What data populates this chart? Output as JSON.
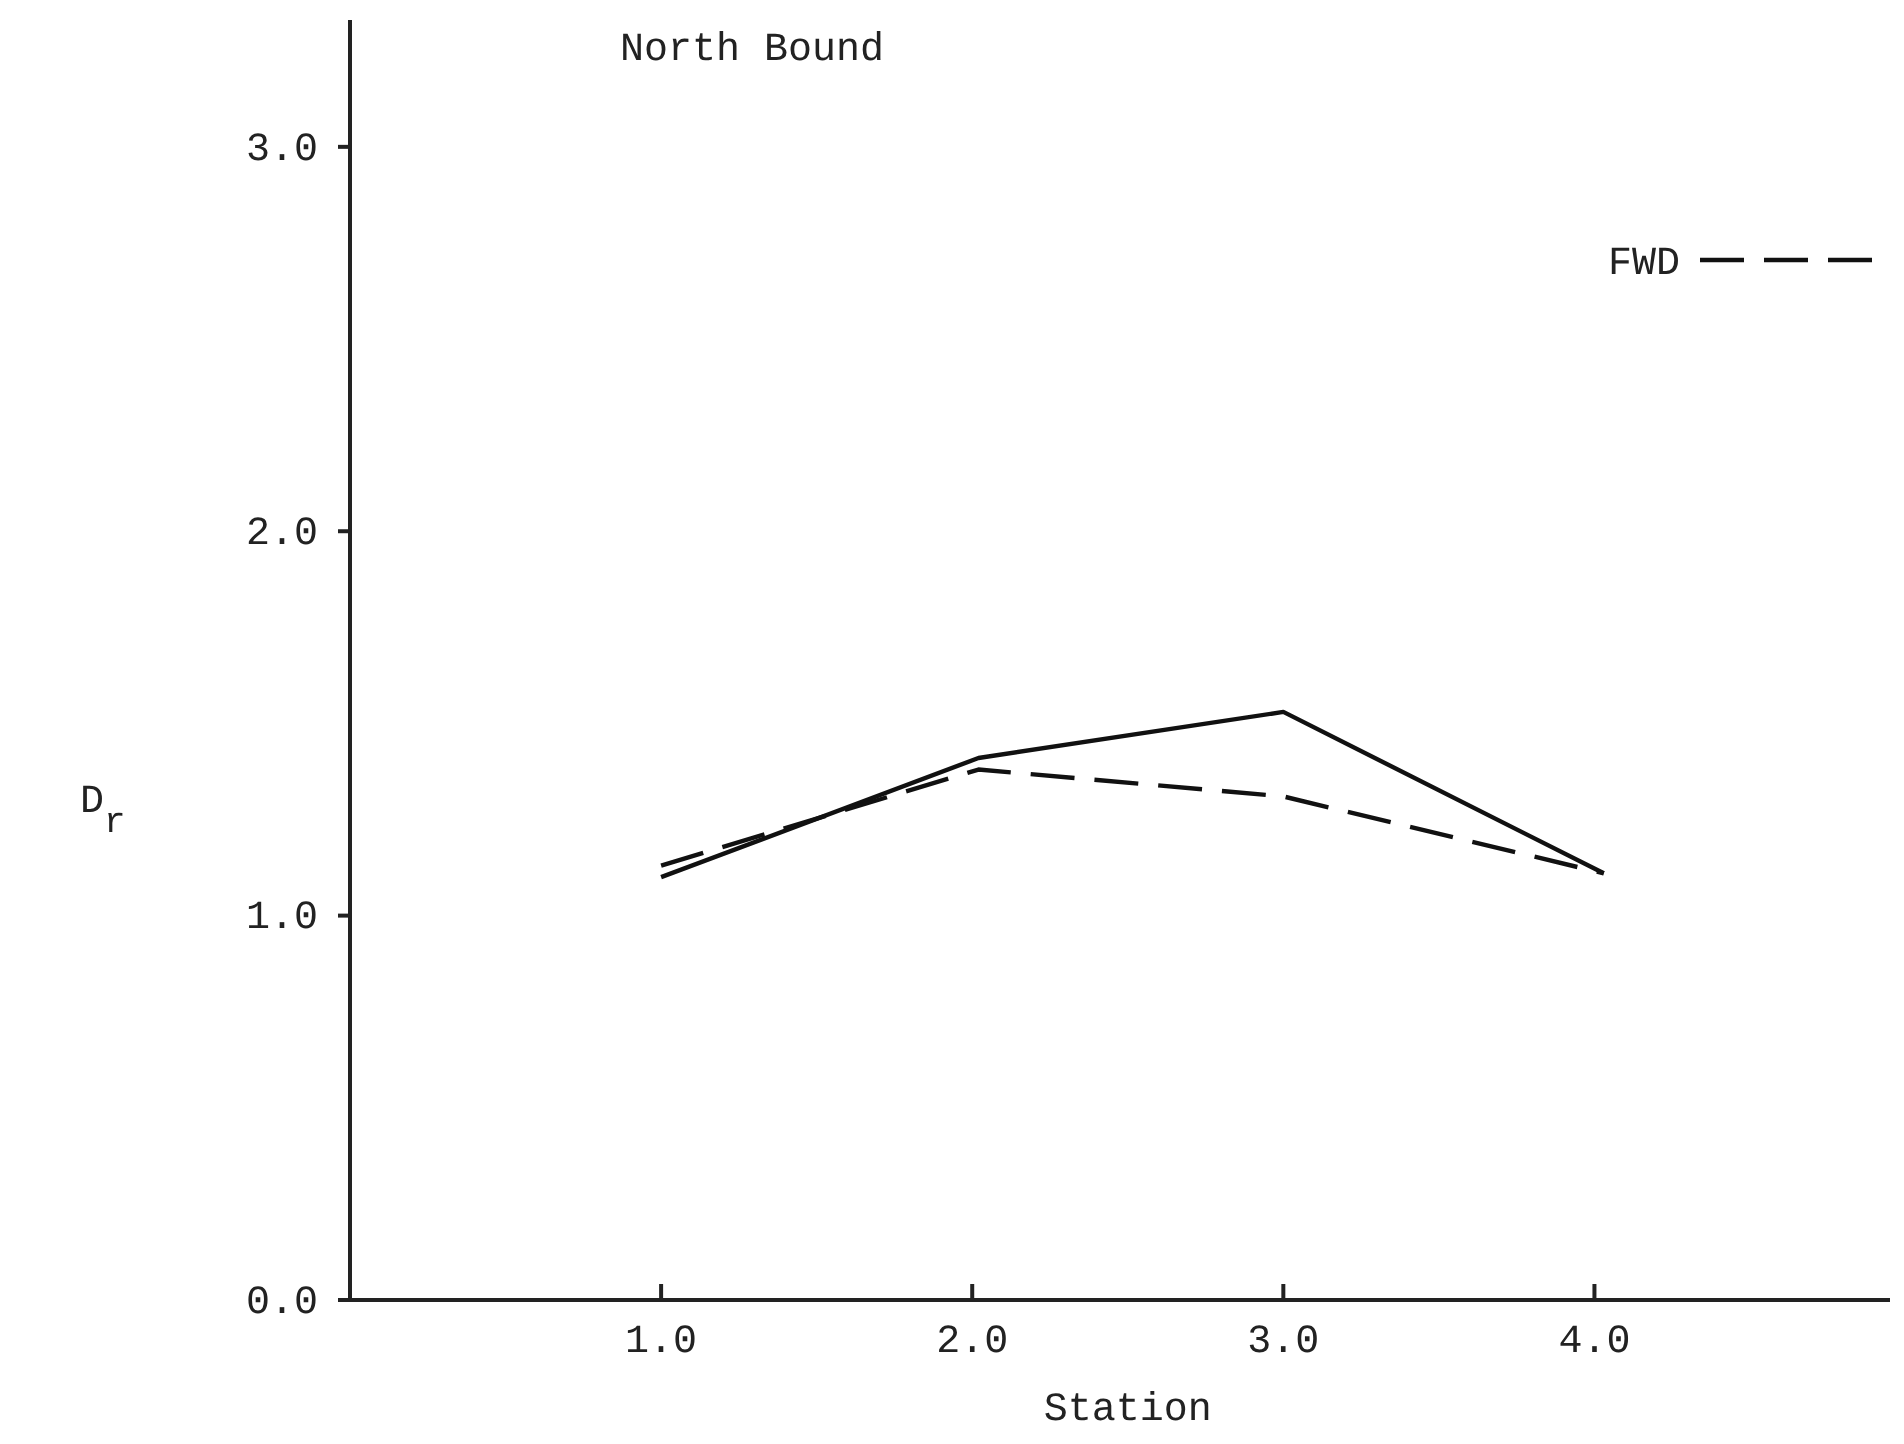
{
  "chart_data": {
    "type": "line",
    "title": "North Bound",
    "xlabel": "Station",
    "ylabel": "D$_{r}$",
    "xlim": [
      0,
      4.95
    ],
    "ylim": [
      0,
      3.33
    ],
    "xticks": [
      {
        "value": 1,
        "label": "1.0"
      },
      {
        "value": 2,
        "label": "2.0"
      },
      {
        "value": 3,
        "label": "3.0"
      },
      {
        "value": 4,
        "label": "4.0"
      }
    ],
    "yticks": [
      {
        "value": 0,
        "label": "0.0"
      },
      {
        "value": 1,
        "label": "1.0"
      },
      {
        "value": 2,
        "label": "2.0"
      },
      {
        "value": 3,
        "label": "3.0"
      }
    ],
    "legend": "top right",
    "series": [
      {
        "color": "#111111",
        "line_style": "solid",
        "x": [
          1,
          2.02,
          3,
          4.03
        ],
        "values": [
          1.1,
          1.41,
          1.53,
          1.11
        ]
      },
      {
        "name": "FWD",
        "color": "#111111",
        "line_style": "dashed",
        "x": [
          1,
          2.02,
          3,
          4.03
        ],
        "values": [
          1.13,
          1.38,
          1.31,
          1.11
        ]
      }
    ]
  }
}
